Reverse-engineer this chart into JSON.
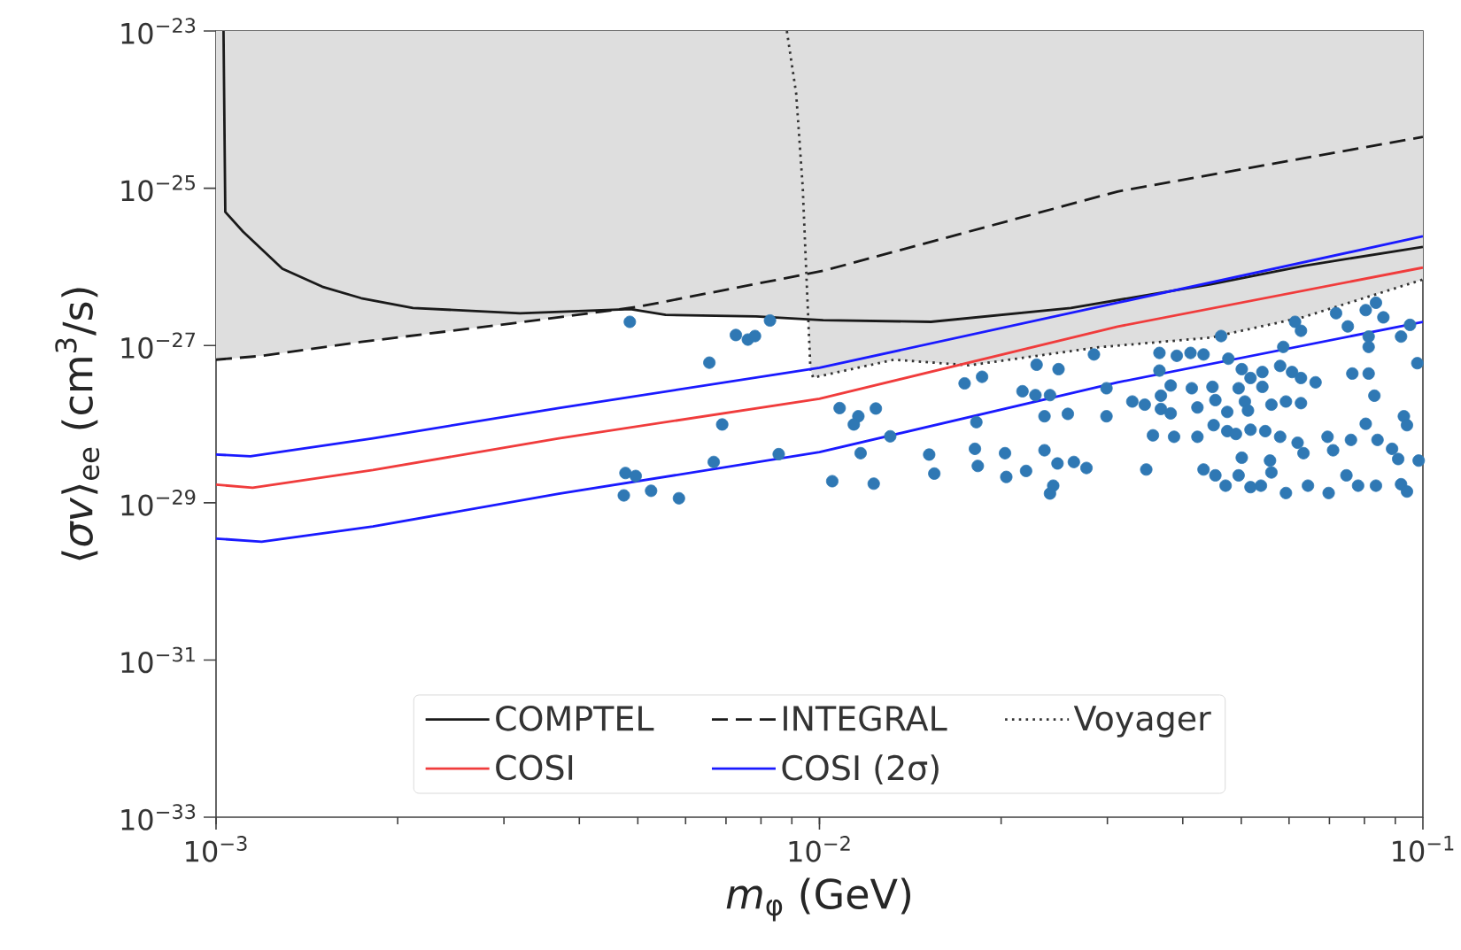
{
  "chart_data": {
    "type": "line",
    "xlabel": "*m*$_{φ}$ (GeV)",
    "ylabel": "⟨*σv*⟩$_{ee}$ (cm$^{3}$/s)",
    "log": "xy",
    "legend": "bottom",
    "xlim": [
      0.001,
      0.1
    ],
    "ylim": [
      1e-33,
      1e-23
    ],
    "xticks": [
      {
        "value": 0.001,
        "label": "10$^{−3}$"
      },
      {
        "value": 0.01,
        "label": "10$^{−2}$"
      },
      {
        "value": 0.1,
        "label": "10$^{−1}$"
      }
    ],
    "yticks": [
      {
        "value": 1e-33,
        "label": "10$^{−33}$"
      },
      {
        "value": 1e-31,
        "label": "10$^{−31}$"
      },
      {
        "value": 1e-29,
        "label": "10$^{−29}$"
      },
      {
        "value": 1e-27,
        "label": "10$^{−27}$"
      },
      {
        "value": 1e-25,
        "label": "10$^{−25}$"
      },
      {
        "value": 1e-23,
        "label": "10$^{−23}$"
      }
    ],
    "series": [
      {
        "type": "area",
        "color": "#dedede",
        "x": [
          0.001,
          0.001,
          0.001195,
          0.00174,
          0.00319,
          0.0048,
          0.00556,
          0.00785,
          0.0095,
          0.00958,
          0.00966,
          0.00976,
          0.0133,
          0.0177,
          0.029,
          0.0445,
          0.0634,
          0.1,
          0.1
        ],
        "values": [
          1e-23,
          6.6e-28,
          7.4e-28,
          1.11e-27,
          1.97e-27,
          2.9e-27,
          2.45e-27,
          2.35e-27,
          2.2e-27,
          2.2e-27,
          5.1e-28,
          3.9e-28,
          6.6e-28,
          5.6e-28,
          9.5e-28,
          1.26e-27,
          2.3e-27,
          6.9e-27,
          1e-23
        ]
      },
      {
        "name": "COMPTEL",
        "color": "#1a1a1a",
        "line_style": "solid",
        "x": [
          0.001029,
          0.001036,
          0.001109,
          0.001288,
          0.0015,
          0.00174,
          0.00212,
          0.00319,
          0.00486,
          0.00556,
          0.00785,
          0.01014,
          0.0153,
          0.0261,
          0.0445,
          0.0634,
          0.1
        ],
        "values": [
          1e-23,
          5e-26,
          2.8e-26,
          9.5e-27,
          5.6e-27,
          4e-27,
          3e-27,
          2.57e-27,
          2.9e-27,
          2.45e-27,
          2.35e-27,
          2.1e-27,
          2e-27,
          3e-27,
          6e-27,
          1.03e-26,
          1.8e-26
        ]
      },
      {
        "name": "INTEGRAL",
        "color": "#1a1a1a",
        "line_style": "dashed",
        "x": [
          0.001,
          0.001195,
          0.00174,
          0.00319,
          0.005,
          0.01014,
          0.0312,
          0.1
        ],
        "values": [
          6.6e-28,
          7.4e-28,
          1.11e-27,
          1.97e-27,
          3.1e-27,
          8.9e-27,
          9.1e-26,
          4.5e-25
        ]
      },
      {
        "name": "Voyager",
        "color": "#333333",
        "line_style": "dotted",
        "x": [
          0.00883,
          0.00915,
          0.00938,
          0.00952,
          0.00966,
          0.00976,
          0.0133,
          0.0177,
          0.029,
          0.0445,
          0.0634,
          0.1
        ],
        "values": [
          1e-23,
          1.6e-24,
          1.05e-25,
          6.9e-27,
          5.1e-28,
          3.9e-28,
          6.6e-28,
          5.6e-28,
          9.5e-28,
          1.26e-27,
          2.3e-27,
          6.9e-27
        ]
      },
      {
        "name": "COSI",
        "color": "#f03c3c",
        "line_style": "solid",
        "x": [
          0.001,
          0.00115,
          0.00182,
          0.0037,
          0.01,
          0.0312,
          0.1
        ],
        "values": [
          1.7e-29,
          1.55e-29,
          2.6e-29,
          6.6e-29,
          2.1e-28,
          1.74e-27,
          9.8e-27
        ]
      },
      {
        "name": "COSI (2σ)",
        "color": "#1a1aff",
        "line_style": "solid",
        "x": [
          0.001,
          0.00114,
          0.00182,
          0.0037,
          0.01,
          0.0312,
          0.1
        ],
        "values": [
          4.1e-29,
          3.9e-29,
          6.6e-29,
          1.6e-28,
          5.2e-28,
          3.5e-27,
          2.45e-26
        ]
      },
      {
        "color": "#1a1aff",
        "line_style": "solid",
        "x": [
          0.001,
          0.00119,
          0.00182,
          0.0037,
          0.01,
          0.0312,
          0.1
        ],
        "values": [
          3.5e-30,
          3.2e-30,
          5e-30,
          1.3e-29,
          4.4e-29,
          3.4e-28,
          2e-27
        ]
      },
      {
        "type": "scatter",
        "color": "#2f78b4",
        "marker": "circle",
        "x": [
          0.00485,
          0.00657,
          0.00727,
          0.00761,
          0.00782,
          0.00828,
          0.0069,
          0.00668,
          0.00856,
          0.00477,
          0.00496,
          0.00474,
          0.00526,
          0.00585,
          0.0108,
          0.0116,
          0.0114,
          0.0124,
          0.0131,
          0.0117,
          0.0105,
          0.0123,
          0.0174,
          0.0186,
          0.0152,
          0.0155,
          0.0182,
          0.0181,
          0.0183,
          0.0203,
          0.0204,
          0.0229,
          0.0249,
          0.0285,
          0.0217,
          0.0228,
          0.0241,
          0.0236,
          0.0258,
          0.0299,
          0.0299,
          0.0236,
          0.0248,
          0.0264,
          0.0277,
          0.022,
          0.0244,
          0.0241,
          0.0348,
          0.0366,
          0.0366,
          0.0391,
          0.0412,
          0.0433,
          0.0476,
          0.0463,
          0.033,
          0.0346,
          0.0368,
          0.0368,
          0.0382,
          0.0382,
          0.0414,
          0.0448,
          0.0423,
          0.0453,
          0.0474,
          0.0357,
          0.0387,
          0.0423,
          0.045,
          0.0474,
          0.049,
          0.0501,
          0.0518,
          0.0495,
          0.0507,
          0.0513,
          0.0542,
          0.0561,
          0.0542,
          0.058,
          0.0607,
          0.0587,
          0.0628,
          0.0593,
          0.0628,
          0.0664,
          0.0614,
          0.0628,
          0.0718,
          0.0751,
          0.0804,
          0.0836,
          0.086,
          0.0813,
          0.0813,
          0.092,
          0.0952,
          0.0979,
          0.0764,
          0.0813,
          0.0831,
          0.0518,
          0.0548,
          0.058,
          0.062,
          0.0634,
          0.0695,
          0.071,
          0.076,
          0.0804,
          0.0841,
          0.0889,
          0.093,
          0.0941,
          0.091,
          0.0984,
          0.0501,
          0.0558,
          0.0561,
          0.0433,
          0.0453,
          0.0471,
          0.0495,
          0.0518,
          0.0539,
          0.0593,
          0.0645,
          0.0698,
          0.0747,
          0.0781,
          0.0836,
          0.092,
          0.0941
        ],
        "values": [
          2e-27,
          6.05e-28,
          1.36e-27,
          1.19e-27,
          1.32e-27,
          2.08e-27,
          9.9e-29,
          3.3e-29,
          4.15e-29,
          2.39e-29,
          2.19e-29,
          1.24e-29,
          1.42e-29,
          1.14e-29,
          1.6e-28,
          1.26e-28,
          9.9e-29,
          1.58e-28,
          7e-29,
          4.27e-29,
          1.88e-29,
          1.75e-29,
          3.3e-28,
          4e-28,
          4.1e-29,
          2.35e-29,
          1.06e-28,
          4.85e-29,
          2.94e-29,
          4.27e-29,
          2.13e-29,
          5.7e-28,
          5e-28,
          7.7e-28,
          2.62e-28,
          2.34e-28,
          2.34e-28,
          1.26e-28,
          1.35e-28,
          1.26e-28,
          2.86e-28,
          4.65e-29,
          3.16e-29,
          3.3e-29,
          2.77e-29,
          2.54e-29,
          1.65e-29,
          1.31e-29,
          2.65e-29,
          8.05e-28,
          4.8e-28,
          7.4e-28,
          8.05e-28,
          7.7e-28,
          6.8e-28,
          1.32e-27,
          1.94e-28,
          1.77e-28,
          2.3e-28,
          1.56e-28,
          1.37e-28,
          3.1e-28,
          2.86e-28,
          2.98e-28,
          1.63e-28,
          2.02e-28,
          1.43e-28,
          7.2e-29,
          6.9e-29,
          6.9e-29,
          9.7e-29,
          8.15e-29,
          7.5e-29,
          5e-28,
          3.86e-28,
          2.86e-28,
          1.94e-28,
          1.49e-28,
          2.98e-28,
          1.77e-28,
          4.6e-28,
          5.5e-28,
          4.6e-28,
          9.6e-28,
          3.86e-28,
          1.94e-28,
          1.85e-28,
          3.4e-28,
          2e-27,
          1.54e-27,
          2.58e-27,
          1.75e-27,
          2.82e-27,
          3.5e-27,
          2.28e-27,
          1.3e-27,
          9.6e-28,
          1.3e-27,
          1.83e-27,
          5.96e-28,
          4.4e-28,
          4.4e-28,
          2.3e-28,
          8.5e-29,
          8.15e-29,
          6.9e-29,
          5.8e-29,
          4.27e-29,
          6.9e-29,
          4.65e-29,
          6.3e-29,
          1.01e-28,
          6.3e-29,
          4.85e-29,
          1.26e-28,
          9.7e-29,
          3.6e-29,
          3.44e-29,
          3.74e-29,
          3.44e-29,
          2.43e-29,
          2.65e-29,
          2.23e-29,
          1.65e-29,
          2.23e-29,
          1.58e-29,
          1.65e-29,
          1.33e-29,
          1.65e-29,
          1.33e-29,
          2.23e-29,
          1.65e-29,
          1.65e-29,
          1.72e-29,
          1.39e-29
        ]
      }
    ]
  }
}
